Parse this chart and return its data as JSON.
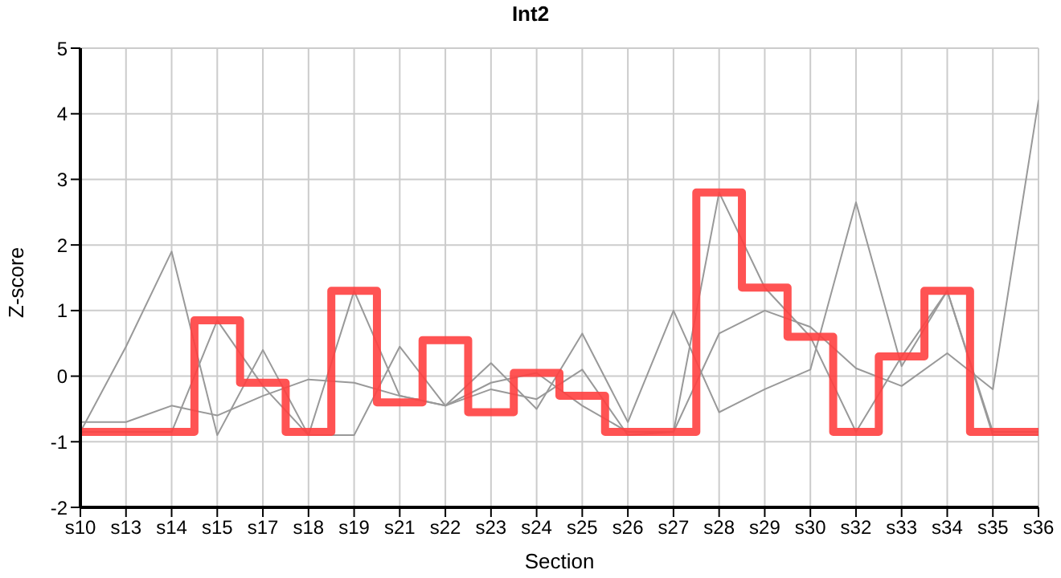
{
  "chart_data": {
    "type": "line",
    "title": "Int2",
    "xlabel": "Section",
    "ylabel": "Z-score",
    "categories": [
      "s10",
      "s13",
      "s14",
      "s15",
      "s17",
      "s18",
      "s19",
      "s21",
      "s22",
      "s23",
      "s24",
      "s25",
      "s26",
      "s27",
      "s28",
      "s29",
      "s30",
      "s32",
      "s33",
      "s34",
      "s35",
      "s36"
    ],
    "series": [
      {
        "color": "#999999",
        "values": [
          -0.85,
          0.45,
          1.9,
          -0.9,
          0.4,
          -0.9,
          1.3,
          -0.3,
          -0.45,
          0.2,
          -0.5,
          0.65,
          -0.7,
          1.0,
          -0.55,
          -0.2,
          0.1,
          2.65,
          0.15,
          1.3,
          -0.9,
          -0.9
        ]
      },
      {
        "color": "#999999",
        "values": [
          -0.7,
          -0.7,
          -0.45,
          -0.6,
          -0.3,
          -0.05,
          -0.1,
          -0.3,
          -0.45,
          -0.2,
          -0.35,
          0.1,
          -0.9,
          -0.85,
          0.65,
          1.0,
          0.75,
          0.12,
          -0.15,
          0.35,
          -0.2,
          4.2
        ]
      },
      {
        "color": "#999999",
        "values": [
          -0.85,
          -0.85,
          -0.85,
          0.85,
          -0.15,
          -0.9,
          -0.9,
          0.45,
          -0.45,
          -0.1,
          0.05,
          -0.45,
          -0.85,
          -0.85,
          2.8,
          1.35,
          0.6,
          -0.85,
          0.3,
          1.3,
          -0.85,
          -0.85
        ]
      },
      {
        "type": "step",
        "color": "#ff4040",
        "values": [
          -0.85,
          -0.85,
          -0.85,
          0.85,
          -0.1,
          -0.85,
          1.3,
          -0.4,
          0.55,
          -0.55,
          0.05,
          -0.3,
          -0.85,
          -0.85,
          2.8,
          1.35,
          0.6,
          -0.85,
          0.3,
          1.3,
          -0.85,
          -0.85
        ]
      }
    ],
    "ylim": [
      -2,
      5
    ],
    "yticks": [
      -2,
      -1,
      0,
      1,
      2,
      3,
      4,
      5
    ],
    "grid": true,
    "legend": false
  }
}
